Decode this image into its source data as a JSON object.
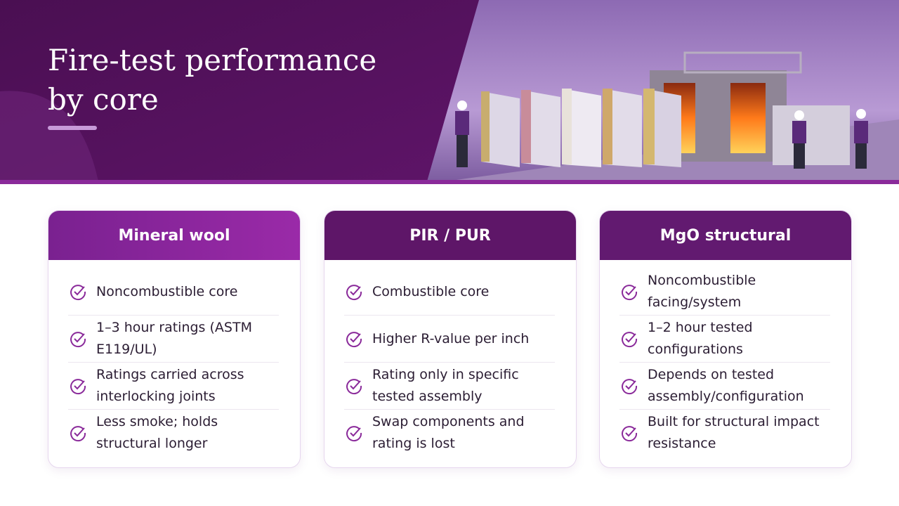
{
  "title": "Fire-test performance by core",
  "cards": [
    {
      "title": "Mineral wool",
      "items": [
        "Noncombustible core",
        "1–3 hour ratings (ASTM E119/UL)",
        "Ratings carried across interlocking joints",
        "Less smoke; holds structural longer"
      ]
    },
    {
      "title": "PIR / PUR",
      "items": [
        "Combustible core",
        "Higher R-value per inch",
        "Rating only in specific tested assembly",
        "Swap components and rating is lost"
      ]
    },
    {
      "title": "MgO structural",
      "items": [
        "Noncombustible facing/system",
        "1–2 hour tested configurations",
        "Depends on tested assembly/configuration",
        "Built for structural impact resistance"
      ]
    }
  ]
}
